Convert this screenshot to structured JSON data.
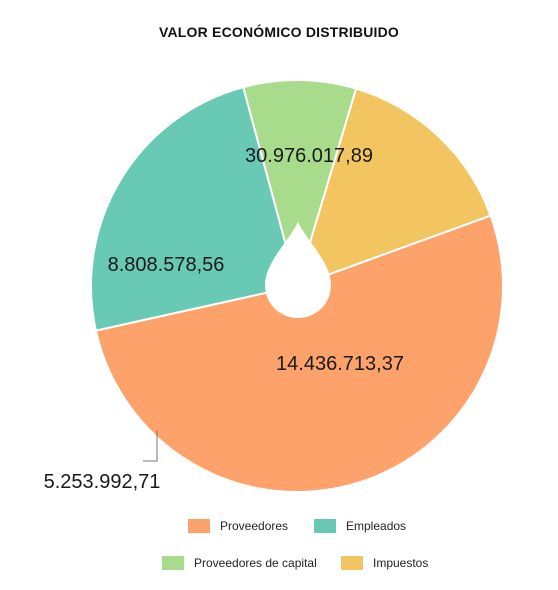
{
  "chart_data": {
    "type": "pie",
    "title": "VALOR ECONÓMICO DISTRIBUIDO",
    "slices": [
      {
        "name": "Proveedores",
        "value": 30976017.89,
        "label": "30.976.017,89",
        "color": "#fda26b"
      },
      {
        "name": "Empleados",
        "value": 14436713.37,
        "label": "14.436.713,37",
        "color": "#68cab5"
      },
      {
        "name": "Proveedores de capital",
        "value": 5253992.71,
        "label": "5.253.992,71",
        "color": "#a8dc8c"
      },
      {
        "name": "Impuestos",
        "value": 8808578.56,
        "label": "8.808.578,56",
        "color": "#f2c561"
      }
    ],
    "legend": [
      {
        "name": "Proveedores",
        "color": "#fda26b"
      },
      {
        "name": "Empleados",
        "color": "#68cab5"
      },
      {
        "name": "Proveedores de capital",
        "color": "#a8dc8c"
      },
      {
        "name": "Impuestos",
        "color": "#f2c561"
      }
    ]
  }
}
